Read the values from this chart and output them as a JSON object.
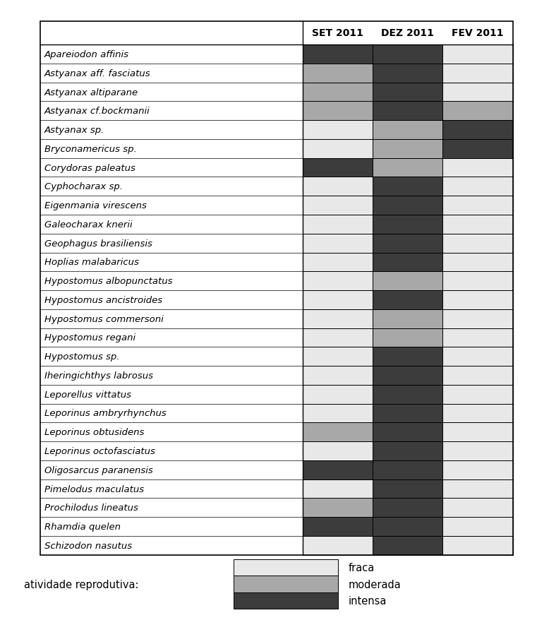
{
  "species": [
    "Apareiodon affinis",
    "Astyanax aff. fasciatus",
    "Astyanax altiparane",
    "Astyanax cf.bockmanii",
    "Astyanax sp.",
    "Bryconamericus sp.",
    "Corydoras paleatus",
    "Cyphocharax sp.",
    "Eigenmania virescens",
    "Galeocharax knerii",
    "Geophagus brasiliensis",
    "Hoplias malabaricus",
    "Hypostomus albopunctatus",
    "Hypostomus ancistroides",
    "Hypostomus commersoni",
    "Hypostomus regani",
    "Hypostomus sp.",
    "Iheringichthys labrosus",
    "Leporellus vittatus",
    "Leporinus ambryrhynchus",
    "Leporinus obtusidens",
    "Leporinus octofasciatus",
    "Oligosarcus paranensis",
    "Pimelodus maculatus",
    "Prochilodus lineatus",
    "Rhamdia quelen",
    "Schizodon nasutus"
  ],
  "columns": [
    "SET 2011",
    "DEZ 2011",
    "FEV 2011"
  ],
  "data": [
    [
      "intensa",
      "intensa",
      "fraca"
    ],
    [
      "moderada",
      "intensa",
      "fraca"
    ],
    [
      "moderada",
      "intensa",
      "fraca"
    ],
    [
      "moderada",
      "intensa",
      "moderada"
    ],
    [
      "fraca",
      "moderada",
      "intensa"
    ],
    [
      "fraca",
      "moderada",
      "intensa"
    ],
    [
      "intensa",
      "moderada",
      "fraca"
    ],
    [
      "fraca",
      "intensa",
      "fraca"
    ],
    [
      "fraca",
      "intensa",
      "fraca"
    ],
    [
      "fraca",
      "intensa",
      "fraca"
    ],
    [
      "fraca",
      "intensa",
      "fraca"
    ],
    [
      "fraca",
      "intensa",
      "fraca"
    ],
    [
      "fraca",
      "moderada",
      "fraca"
    ],
    [
      "fraca",
      "intensa",
      "fraca"
    ],
    [
      "fraca",
      "moderada",
      "fraca"
    ],
    [
      "fraca",
      "moderada",
      "fraca"
    ],
    [
      "fraca",
      "intensa",
      "fraca"
    ],
    [
      "fraca",
      "intensa",
      "fraca"
    ],
    [
      "fraca",
      "intensa",
      "fraca"
    ],
    [
      "fraca",
      "intensa",
      "fraca"
    ],
    [
      "moderada",
      "intensa",
      "fraca"
    ],
    [
      "fraca",
      "intensa",
      "fraca"
    ],
    [
      "intensa",
      "intensa",
      "fraca"
    ],
    [
      "fraca",
      "intensa",
      "fraca"
    ],
    [
      "moderada",
      "intensa",
      "fraca"
    ],
    [
      "intensa",
      "intensa",
      "fraca"
    ],
    [
      "fraca",
      "intensa",
      "fraca"
    ]
  ],
  "color_map": {
    "fraca": "#e8e8e8",
    "moderada": "#a8a8a8",
    "intensa": "#3c3c3c"
  },
  "legend_labels": [
    "fraca",
    "moderada",
    "intensa"
  ],
  "legend_title": "atividade reprodutiva:",
  "background_color": "#ffffff",
  "border_color": "#000000",
  "text_color": "#000000",
  "font_size_species": 9.5,
  "font_size_header": 10,
  "font_size_legend": 10.5
}
